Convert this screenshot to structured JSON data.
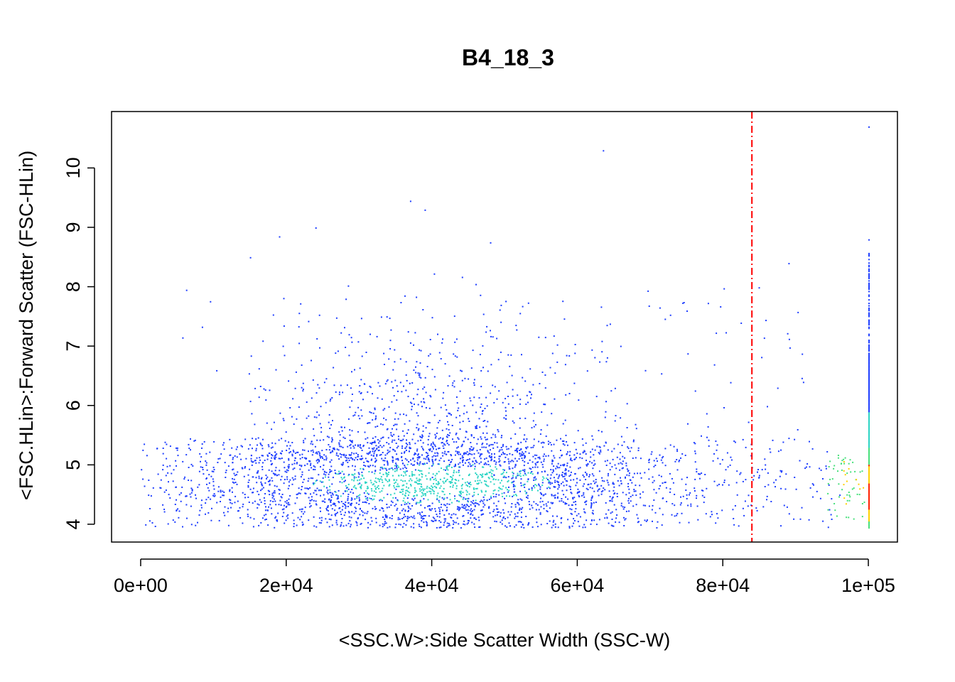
{
  "chart_data": {
    "type": "scatter",
    "title": "B4_18_3",
    "xlabel": "<SSC.W>:Side Scatter Width (SSC-W)",
    "ylabel": "<FSC.HLin>:Forward Scatter (FSC-HLin)",
    "xlim": [
      -4000,
      104000
    ],
    "ylim": [
      3.7,
      10.95
    ],
    "x_ticks": [
      0,
      20000,
      40000,
      60000,
      80000,
      100000
    ],
    "x_tick_labels": [
      "0e+00",
      "2e+04",
      "4e+04",
      "6e+04",
      "8e+04",
      "1e+05"
    ],
    "y_ticks": [
      4,
      5,
      6,
      7,
      8,
      9,
      10
    ],
    "y_tick_labels": [
      "4",
      "5",
      "6",
      "7",
      "8",
      "9",
      "10"
    ],
    "grid": false,
    "legend": "none",
    "colormap": "density (blue → cyan → green → yellow → red)",
    "threshold_line": {
      "x": 84000,
      "color": "#ff0000",
      "style": "dash-dot"
    },
    "point_colors": [
      "#1f3fff",
      "#2bd4c4",
      "#46e07a",
      "#ffd000",
      "#ff2000"
    ],
    "population": {
      "main_cluster": {
        "x_center": 40000,
        "y_center": 4.7,
        "x_sd": 14000,
        "y_sd": 0.28
      },
      "spread_cluster": {
        "x_center": 37000,
        "y_center": 6.0,
        "x_sd": 9000,
        "y_sd": 1.0
      },
      "saturation_column_x": 100000,
      "sample_points": [
        {
          "x": 1000,
          "y": 4.5
        },
        {
          "x": 3000,
          "y": 5.2
        },
        {
          "x": 8000,
          "y": 4.9
        },
        {
          "x": 15000,
          "y": 4.6
        },
        {
          "x": 22000,
          "y": 5.0
        },
        {
          "x": 30000,
          "y": 4.7
        },
        {
          "x": 35000,
          "y": 4.6
        },
        {
          "x": 40000,
          "y": 4.8
        },
        {
          "x": 45000,
          "y": 4.7
        },
        {
          "x": 52000,
          "y": 4.9
        },
        {
          "x": 60000,
          "y": 4.6
        },
        {
          "x": 68000,
          "y": 4.5
        },
        {
          "x": 75000,
          "y": 4.8
        },
        {
          "x": 83000,
          "y": 4.4
        },
        {
          "x": 90000,
          "y": 4.6
        },
        {
          "x": 96000,
          "y": 4.5
        },
        {
          "x": 100000,
          "y": 4.3
        },
        {
          "x": 100000,
          "y": 5.0
        },
        {
          "x": 100000,
          "y": 6.5
        },
        {
          "x": 100000,
          "y": 8.8
        },
        {
          "x": 100000,
          "y": 10.7
        },
        {
          "x": 63500,
          "y": 10.3
        },
        {
          "x": 37000,
          "y": 9.45
        },
        {
          "x": 39000,
          "y": 9.3
        },
        {
          "x": 19000,
          "y": 8.85
        },
        {
          "x": 24000,
          "y": 9.0
        },
        {
          "x": 15000,
          "y": 8.5
        },
        {
          "x": 89000,
          "y": 8.4
        },
        {
          "x": 75000,
          "y": 7.6
        },
        {
          "x": 48000,
          "y": 8.75
        },
        {
          "x": 33000,
          "y": 7.5
        },
        {
          "x": 41000,
          "y": 6.9
        },
        {
          "x": 29000,
          "y": 6.2
        },
        {
          "x": 55000,
          "y": 5.9
        },
        {
          "x": 91000,
          "y": 6.4
        }
      ]
    }
  }
}
